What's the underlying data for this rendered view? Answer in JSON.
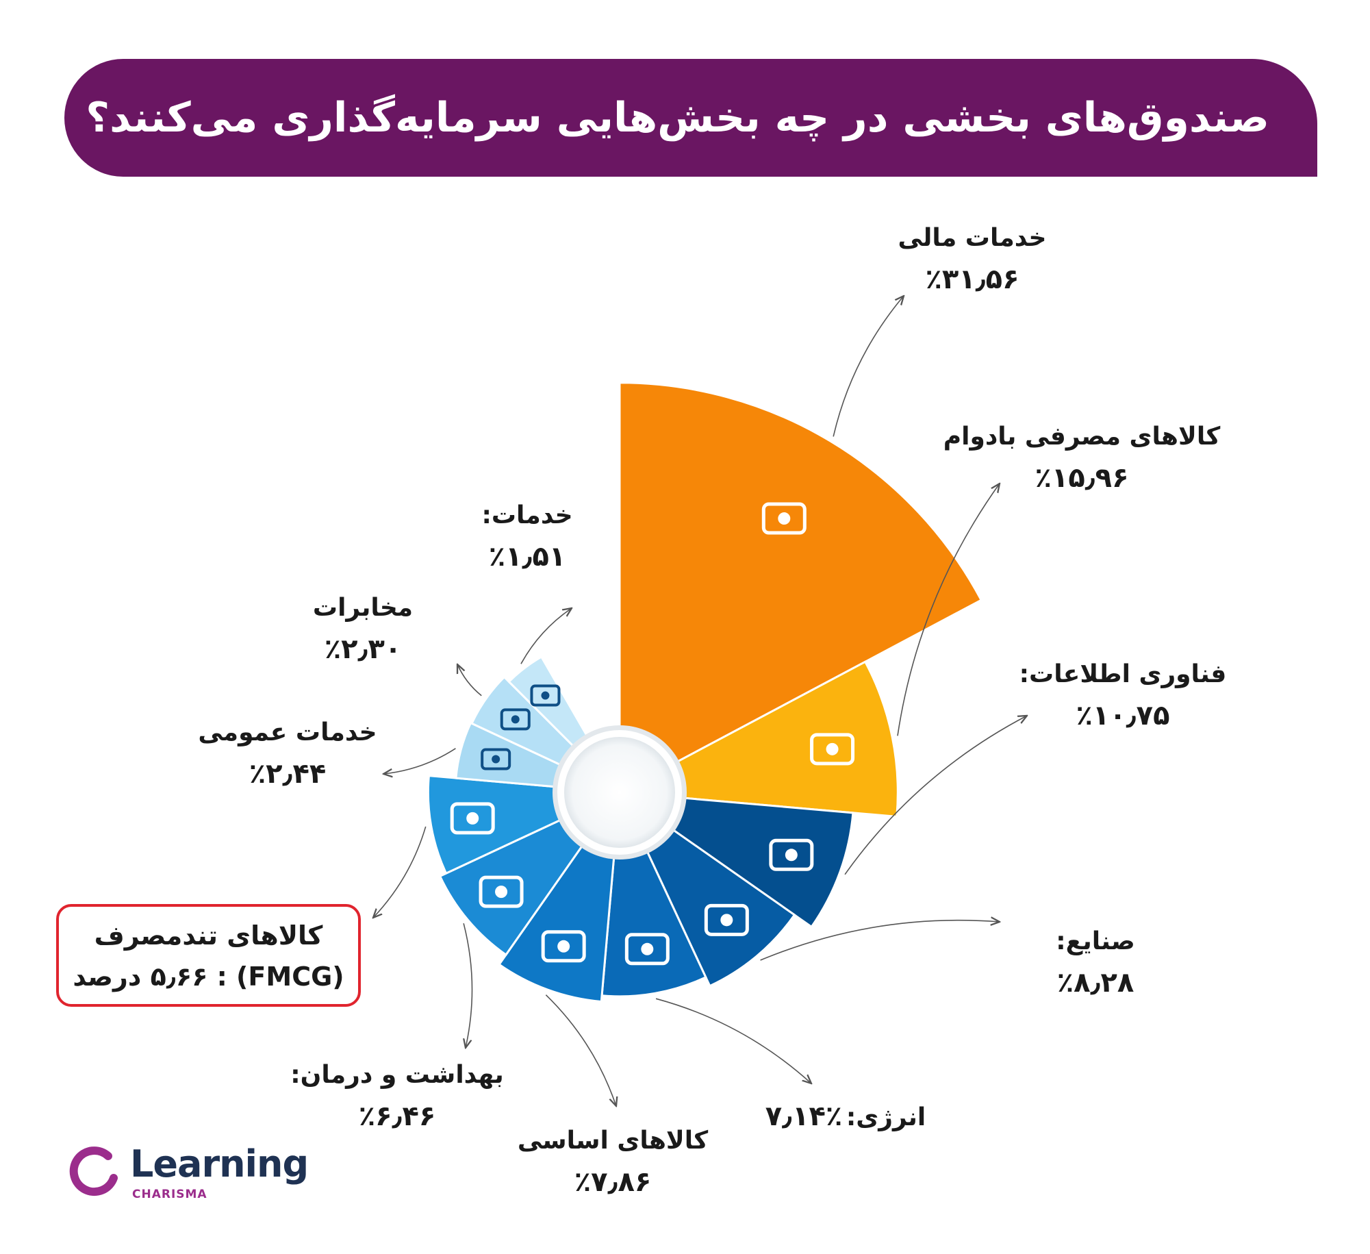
{
  "title": "صندوق‌های بخشی در چه بخش‌هایی سرمایه‌گذاری می‌کنند؟",
  "colors": {
    "banner": "#6a1662",
    "fmcg_border": "#e0242e",
    "logo_ring": "#9b2d8c",
    "logo_text": "#1f3253"
  },
  "chart_data": {
    "type": "pie",
    "variant": "polar-area (radius proportional to share)",
    "unit": "%",
    "slices": [
      {
        "label": "خدمات مالی",
        "value": 31.56,
        "value_text": "٪۳۱٫۵۶",
        "color": "#f68708",
        "icon": "hand-coin-icon"
      },
      {
        "label": "کالاهای مصرفی بادوام",
        "value": 15.96,
        "value_text": "٪۱۵٫۹۶",
        "color": "#fbb30e",
        "icon": "shopping-cart-check-icon"
      },
      {
        "label": "فناوری اطلاعات:",
        "value": 10.75,
        "value_text": "٪۱۰٫۷۵",
        "color": "#044f8f",
        "icon": "laptop-code-icon"
      },
      {
        "label": "صنایع:",
        "value": 8.28,
        "value_text": "٪۸٫۲۸",
        "color": "#065ca4",
        "icon": "factory-icon"
      },
      {
        "label": "انرژی:",
        "value": 7.14,
        "value_text": "٪۷٫۱۴",
        "color": "#0a6ab7",
        "icon": "lightning-bolt-icon"
      },
      {
        "label": "کالاهای اساسی",
        "value": 7.86,
        "value_text": "٪۷٫۸۶",
        "color": "#0e78c6",
        "icon": "grocery-bag-icon"
      },
      {
        "label": "بهداشت و درمان:",
        "value": 6.46,
        "value_text": "٪۶٫۴۶",
        "color": "#1b8bd5",
        "icon": "health-hands-icon"
      },
      {
        "label": "کالاهای تندمصرف",
        "value": 5.66,
        "value_text": "(FMCG) : ۵٫۶۶ درصد",
        "color": "#2198dd",
        "icon": "shopping-cart-icon"
      },
      {
        "label": "خدمات عمومی",
        "value": 2.44,
        "value_text": "٪۲٫۴۴",
        "color": "#a9daf3",
        "icon": "gear-wrench-icon"
      },
      {
        "label": "مخابرات",
        "value": 2.3,
        "value_text": "٪۲٫۳۰",
        "color": "#b5e0f6",
        "icon": "antenna-tower-icon"
      },
      {
        "label": "خدمات:",
        "value": 1.51,
        "value_text": "٪۱٫۵۱",
        "color": "#c4e7f8",
        "icon": "gear-hand-icon"
      }
    ]
  },
  "logo": {
    "word": "Learning",
    "sub": "CHARISMA"
  }
}
